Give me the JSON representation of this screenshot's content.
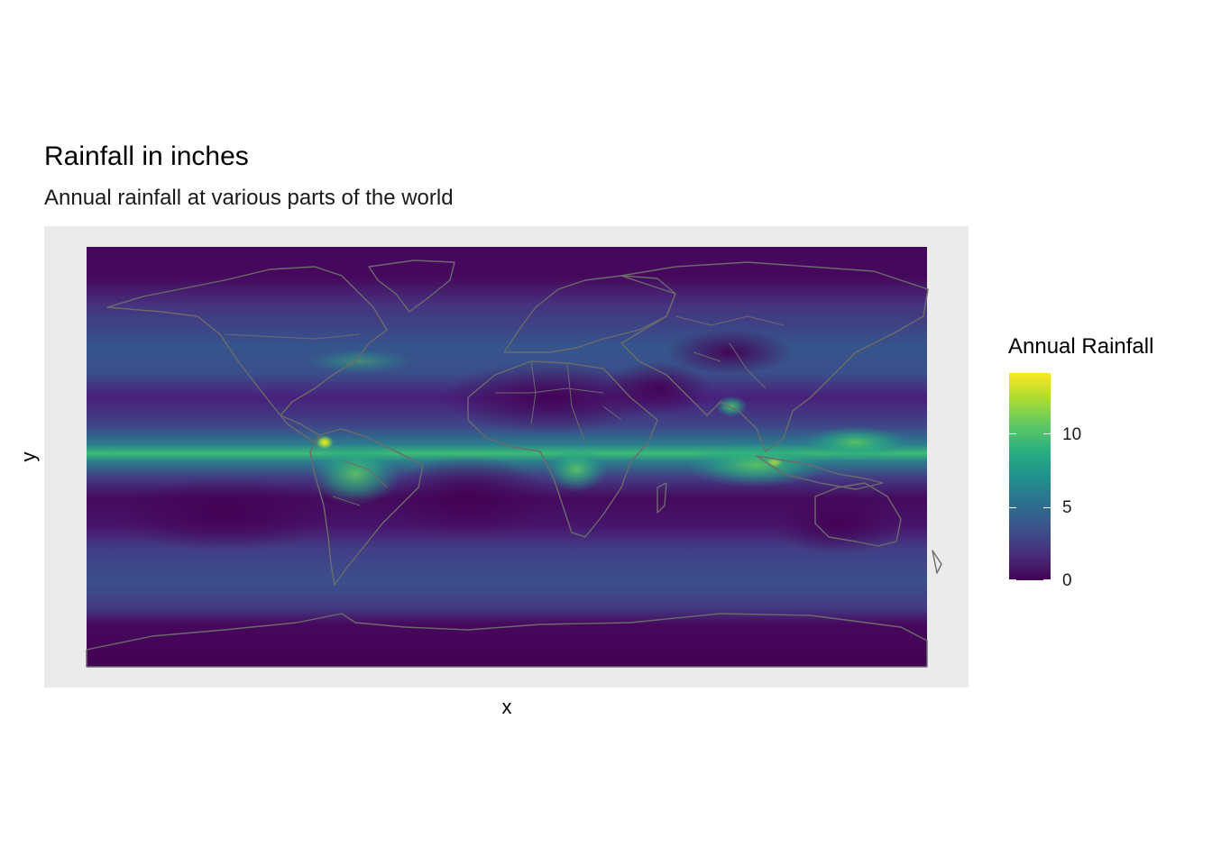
{
  "title": "Rainfall in inches",
  "subtitle": "Annual rainfall at various parts of the world",
  "axes": {
    "x_label": "x",
    "y_label": "y"
  },
  "legend": {
    "title": "Annual Rainfall",
    "ticks": [
      "10",
      "5",
      "0"
    ],
    "tick_values": [
      10,
      5,
      0
    ],
    "range": [
      0,
      14
    ]
  },
  "colors": {
    "panel_background": "#ebebeb",
    "low": "#440154",
    "mid": "#21918c",
    "high": "#fde725",
    "borders": "#6b6b6b"
  },
  "map": {
    "type": "raster",
    "projection": "equirectangular",
    "extent": {
      "lon": [
        -180,
        180
      ],
      "lat": [
        -90,
        90
      ]
    },
    "bands": [
      {
        "name": "Intertropical convergence zone",
        "lat": 5,
        "value": 9
      },
      {
        "name": "Northern storm track",
        "lat": 45,
        "value": 4.5
      },
      {
        "name": "Southern storm track",
        "lat": -50,
        "value": 4
      },
      {
        "name": "Subtropical dry zone north",
        "lat": 25,
        "value": 1
      },
      {
        "name": "Subtropical dry zone south",
        "lat": -25,
        "value": 0.8
      }
    ],
    "hotspots": [
      {
        "name": "Colombian Pacific coast",
        "lon": -77,
        "lat": 5,
        "value": 14
      },
      {
        "name": "Maritime Continent",
        "lon": 115,
        "lat": 0,
        "value": 10
      },
      {
        "name": "Bay of Bengal",
        "lon": 92,
        "lat": 20,
        "value": 9
      }
    ]
  }
}
